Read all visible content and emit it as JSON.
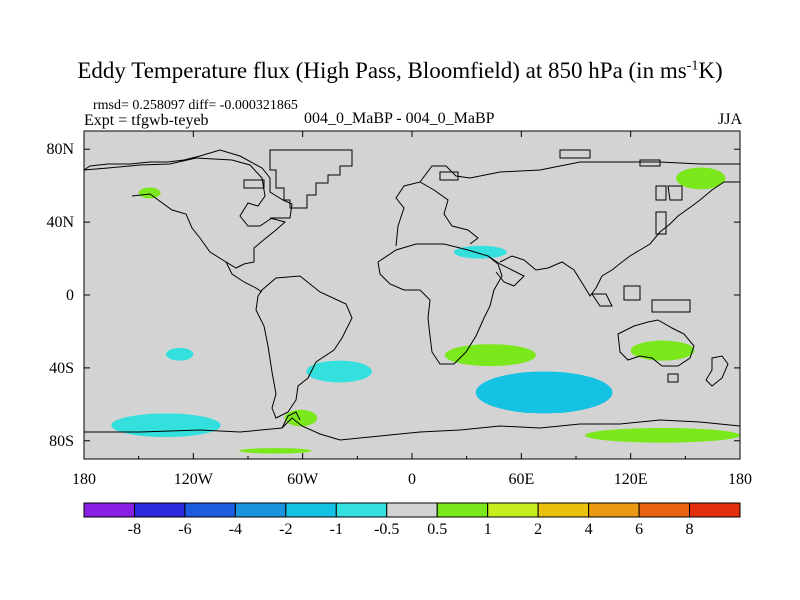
{
  "title": {
    "prefix": "Eddy Temperature flux (High Pass, Bloomfield) at 850 hPa (in ms",
    "sup": "-1",
    "suffix": "K)"
  },
  "stats_text": "rmsd= 0.258097  diff= -0.000321865",
  "expt_text": "Expt = tfgwb-teyeb",
  "runs_text": "004_0_MaBP - 004_0_MaBP",
  "season_text": "JJA",
  "colors": {
    "background": "#ffffff",
    "field_neutral": "#d3d3d3",
    "coastline": "#000000"
  },
  "chart_data": {
    "type": "heatmap",
    "title": "Eddy Temperature flux (High Pass, Bloomfield) at 850 hPa (in ms-1K)",
    "xlabel": "",
    "ylabel": "",
    "xlim": [
      -180,
      180
    ],
    "ylim": [
      -90,
      90
    ],
    "x_ticks": [
      {
        "value": -180,
        "label": "180"
      },
      {
        "value": -120,
        "label": "120W"
      },
      {
        "value": -60,
        "label": "60W"
      },
      {
        "value": 0,
        "label": "0"
      },
      {
        "value": 60,
        "label": "60E"
      },
      {
        "value": 120,
        "label": "120E"
      },
      {
        "value": 180,
        "label": "180"
      }
    ],
    "y_ticks": [
      {
        "value": 80,
        "label": "80N"
      },
      {
        "value": 40,
        "label": "40N"
      },
      {
        "value": 0,
        "label": "0"
      },
      {
        "value": -40,
        "label": "40S"
      },
      {
        "value": -80,
        "label": "80S"
      }
    ],
    "colorbar": {
      "levels": [
        "-8",
        "-6",
        "-4",
        "-2",
        "-1",
        "-0.5",
        "0.5",
        "1",
        "2",
        "4",
        "6",
        "8"
      ],
      "colors": [
        "#8a1fe6",
        "#2a2adc",
        "#1d5be0",
        "#1a92dd",
        "#15c2e4",
        "#33e0dd",
        "#d3d3d3",
        "#7ae81a",
        "#c6ee1e",
        "#e9c10e",
        "#ea9a12",
        "#e8640f",
        "#e2300e"
      ]
    },
    "regions": [
      {
        "name": "n-pacific-east-pos",
        "level": "0.5 to 1",
        "color": "#7ae81a",
        "lon": [
          -150,
          -138
        ],
        "lat": [
          53,
          59
        ]
      },
      {
        "name": "siberia-pos",
        "level": "0.5 to 1",
        "color": "#7ae81a",
        "lon": [
          145,
          172
        ],
        "lat": [
          58,
          70
        ]
      },
      {
        "name": "n-africa-neg",
        "level": "-1 to -0.5",
        "color": "#33e0dd",
        "lon": [
          23,
          52
        ],
        "lat": [
          20,
          27
        ]
      },
      {
        "name": "s-atlantic-neg",
        "level": "-1 to -0.5",
        "color": "#33e0dd",
        "lon": [
          -58,
          -22
        ],
        "lat": [
          -36,
          -48
        ]
      },
      {
        "name": "s-pacific-neg-small",
        "level": "-1 to -0.5",
        "color": "#33e0dd",
        "lon": [
          -135,
          -120
        ],
        "lat": [
          -29,
          -36
        ]
      },
      {
        "name": "s-indian-pos",
        "level": "0.5 to 2",
        "color": "#7ae81a",
        "lon": [
          18,
          68
        ],
        "lat": [
          -27,
          -39
        ]
      },
      {
        "name": "s-indian-neg",
        "level": "-4 to -0.5",
        "color": "#15c2e4",
        "lon": [
          35,
          110
        ],
        "lat": [
          -42,
          -65
        ]
      },
      {
        "name": "australia-south-pos",
        "level": "0.5 to 1",
        "color": "#7ae81a",
        "lon": [
          120,
          155
        ],
        "lat": [
          -25,
          -36
        ]
      },
      {
        "name": "antarctic-coast-pos",
        "level": "0.5 to 4",
        "color": "#7ae81a",
        "lon": [
          95,
          180
        ],
        "lat": [
          -73,
          -81
        ]
      },
      {
        "name": "s-pacific-neg",
        "level": "-2 to -0.5",
        "color": "#33e0dd",
        "lon": [
          -165,
          -105
        ],
        "lat": [
          -65,
          -78
        ]
      },
      {
        "name": "drake-passage-pos",
        "level": "0.5 to 1",
        "color": "#7ae81a",
        "lon": [
          -70,
          -52
        ],
        "lat": [
          -63,
          -72
        ]
      },
      {
        "name": "antarctica-lon0-pos",
        "level": "0.5 to 1",
        "color": "#7ae81a",
        "lon": [
          -95,
          -55
        ],
        "lat": [
          -84,
          -87
        ]
      }
    ]
  }
}
